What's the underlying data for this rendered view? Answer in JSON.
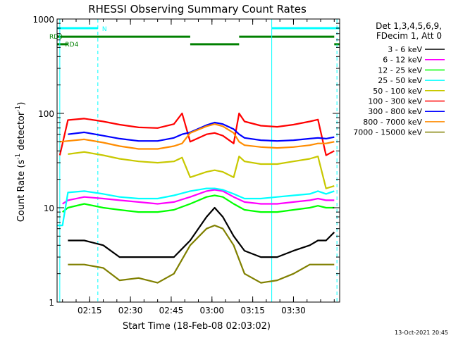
{
  "chart_data": {
    "type": "line",
    "title": "RHESSI Observing Summary Count Rates",
    "xlabel": "Start Time (18-Feb-08 02:03:02)",
    "ylabel": "Count Rate (s⁻¹ detector⁻¹)",
    "ylabel_parts": [
      "Count Rate (s",
      "-1",
      " detector",
      "-1",
      ")"
    ],
    "x_range": [
      "02:03",
      "03:47"
    ],
    "x_ticks": [
      "02:15",
      "02:30",
      "02:45",
      "03:00",
      "03:15",
      "03:30"
    ],
    "y_scale": "log",
    "y_range": [
      1,
      1000
    ],
    "y_ticks": [
      "1",
      "10",
      "100",
      "1000"
    ],
    "legend_header": [
      "Det 1,3,4,5,6,9,",
      "FDecim 1, Att 0"
    ],
    "series": [
      {
        "name": "3 - 6 keV",
        "color": "#000000",
        "x": [
          "02:07",
          "02:13",
          "02:20",
          "02:26",
          "02:33",
          "02:40",
          "02:46",
          "02:52",
          "02:58",
          "03:01",
          "03:04",
          "03:08",
          "03:12",
          "03:18",
          "03:24",
          "03:30",
          "03:36",
          "03:39",
          "03:42",
          "03:45"
        ],
        "y": [
          4.5,
          4.5,
          4,
          3,
          3,
          3,
          3,
          4.5,
          8,
          10,
          8,
          5,
          3.5,
          3,
          3,
          3.5,
          4,
          4.5,
          4.5,
          5.5
        ]
      },
      {
        "name": "6 - 12 keV",
        "color": "#ff00ff",
        "x": [
          "02:05",
          "02:07",
          "02:13",
          "02:20",
          "02:26",
          "02:33",
          "02:40",
          "02:46",
          "02:52",
          "02:58",
          "03:01",
          "03:04",
          "03:08",
          "03:12",
          "03:18",
          "03:24",
          "03:30",
          "03:36",
          "03:39",
          "03:42",
          "03:45"
        ],
        "y": [
          11,
          12,
          13,
          12.5,
          12,
          11.5,
          11,
          11.5,
          13,
          15,
          15.5,
          15,
          13,
          11.5,
          11,
          11,
          11.5,
          12,
          12.5,
          12,
          12
        ]
      },
      {
        "name": "12 - 25 keV",
        "color": "#00ff00",
        "x": [
          "02:05",
          "02:07",
          "02:13",
          "02:20",
          "02:26",
          "02:33",
          "02:40",
          "02:46",
          "02:52",
          "02:58",
          "03:01",
          "03:04",
          "03:08",
          "03:12",
          "03:18",
          "03:24",
          "03:30",
          "03:36",
          "03:39",
          "03:42",
          "03:45"
        ],
        "y": [
          9,
          10,
          11,
          10,
          9.5,
          9,
          9,
          9.5,
          11,
          13,
          13.5,
          13,
          11,
          9.5,
          9,
          9,
          9.5,
          10,
          10.5,
          10,
          10
        ]
      },
      {
        "name": "25 - 50 keV",
        "color": "#00ffff",
        "x": [
          "02:03",
          "02:05",
          "02:07",
          "02:13",
          "02:20",
          "02:26",
          "02:33",
          "02:40",
          "02:46",
          "02:52",
          "02:58",
          "03:01",
          "03:04",
          "03:08",
          "03:12",
          "03:18",
          "03:24",
          "03:30",
          "03:36",
          "03:39",
          "03:42",
          "03:45"
        ],
        "y": [
          6.5,
          6.5,
          14.5,
          15,
          14,
          13,
          12.5,
          12.5,
          13.5,
          15,
          16,
          16,
          15.5,
          14,
          12.5,
          12.5,
          13,
          13.5,
          14,
          15,
          14,
          15
        ]
      },
      {
        "name": "50 - 100 keV",
        "color": "#c8c800",
        "x": [
          "02:07",
          "02:13",
          "02:20",
          "02:26",
          "02:33",
          "02:40",
          "02:46",
          "02:49",
          "02:52",
          "02:58",
          "03:01",
          "03:04",
          "03:08",
          "03:10",
          "03:12",
          "03:18",
          "03:24",
          "03:30",
          "03:36",
          "03:39",
          "03:42",
          "03:45"
        ],
        "y": [
          37,
          39,
          36,
          33,
          31,
          30,
          31,
          34,
          21,
          24,
          25,
          24,
          21,
          35,
          31,
          29,
          29,
          31,
          33,
          35,
          16,
          17
        ]
      },
      {
        "name": "100 - 300 keV",
        "color": "#ff0000",
        "x": [
          "02:04",
          "02:07",
          "02:13",
          "02:20",
          "02:26",
          "02:33",
          "02:40",
          "02:46",
          "02:49",
          "02:52",
          "02:58",
          "03:01",
          "03:04",
          "03:08",
          "03:10",
          "03:12",
          "03:18",
          "03:24",
          "03:30",
          "03:36",
          "03:39",
          "03:42",
          "03:45"
        ],
        "y": [
          36,
          85,
          88,
          82,
          76,
          71,
          70,
          77,
          100,
          50,
          60,
          62,
          58,
          48,
          100,
          82,
          74,
          72,
          76,
          82,
          86,
          36,
          40
        ]
      },
      {
        "name": "300 - 800 keV",
        "color": "#0000ff",
        "x": [
          "02:07",
          "02:13",
          "02:20",
          "02:26",
          "02:33",
          "02:40",
          "02:46",
          "02:49",
          "02:52",
          "02:58",
          "03:01",
          "03:04",
          "03:08",
          "03:10",
          "03:12",
          "03:18",
          "03:24",
          "03:30",
          "03:36",
          "03:39",
          "03:42",
          "03:45"
        ],
        "y": [
          60,
          63,
          58,
          54,
          51,
          51,
          55,
          60,
          63,
          75,
          80,
          77,
          68,
          60,
          55,
          52,
          51,
          52,
          54,
          55,
          54,
          56
        ]
      },
      {
        "name": "800 - 7000 keV",
        "color": "#ff8c00",
        "x": [
          "02:04",
          "02:07",
          "02:13",
          "02:20",
          "02:26",
          "02:33",
          "02:40",
          "02:46",
          "02:49",
          "02:52",
          "02:58",
          "03:01",
          "03:04",
          "03:08",
          "03:10",
          "03:12",
          "03:18",
          "03:24",
          "03:30",
          "03:36",
          "03:39",
          "03:42",
          "03:45"
        ],
        "y": [
          50,
          51,
          53,
          49,
          45,
          42,
          42,
          45,
          48,
          62,
          73,
          77,
          73,
          62,
          50,
          46,
          44,
          43,
          44,
          46,
          48,
          48,
          50
        ]
      },
      {
        "name": "7000 - 15000 keV",
        "color": "#808000",
        "x": [
          "02:07",
          "02:13",
          "02:20",
          "02:26",
          "02:33",
          "02:40",
          "02:46",
          "02:52",
          "02:58",
          "03:01",
          "03:04",
          "03:08",
          "03:12",
          "03:18",
          "03:24",
          "03:30",
          "03:36",
          "03:39",
          "03:42",
          "03:45"
        ],
        "y": [
          2.5,
          2.5,
          2.3,
          1.7,
          1.8,
          1.6,
          2,
          4,
          6,
          6.5,
          6,
          4,
          2,
          1.6,
          1.7,
          2,
          2.5,
          2.5,
          2.5,
          2.5
        ]
      }
    ],
    "status_bars": [
      {
        "label": "N",
        "color": "#00ffff",
        "y": 800,
        "segments": [
          [
            "02:03",
            "02:18"
          ],
          [
            "03:22",
            "03:47"
          ]
        ]
      },
      {
        "label": "RD0",
        "color": "#008000",
        "y": 650,
        "segments": [
          [
            "02:03",
            "02:52"
          ],
          [
            "03:10",
            "03:45"
          ]
        ]
      },
      {
        "label": "RD4",
        "color": "#008000",
        "y": 540,
        "segments": [
          [
            "02:03",
            "02:07"
          ],
          [
            "02:52",
            "03:10"
          ],
          [
            "03:45",
            "03:47"
          ]
        ]
      }
    ],
    "vlines_solid": [
      "02:04",
      "03:22"
    ],
    "vlines_dashed": [
      "02:18",
      "03:46"
    ],
    "grid": false,
    "legend_position": "right"
  },
  "footer": {
    "timestamp": "13-Oct-2021 20:45"
  }
}
